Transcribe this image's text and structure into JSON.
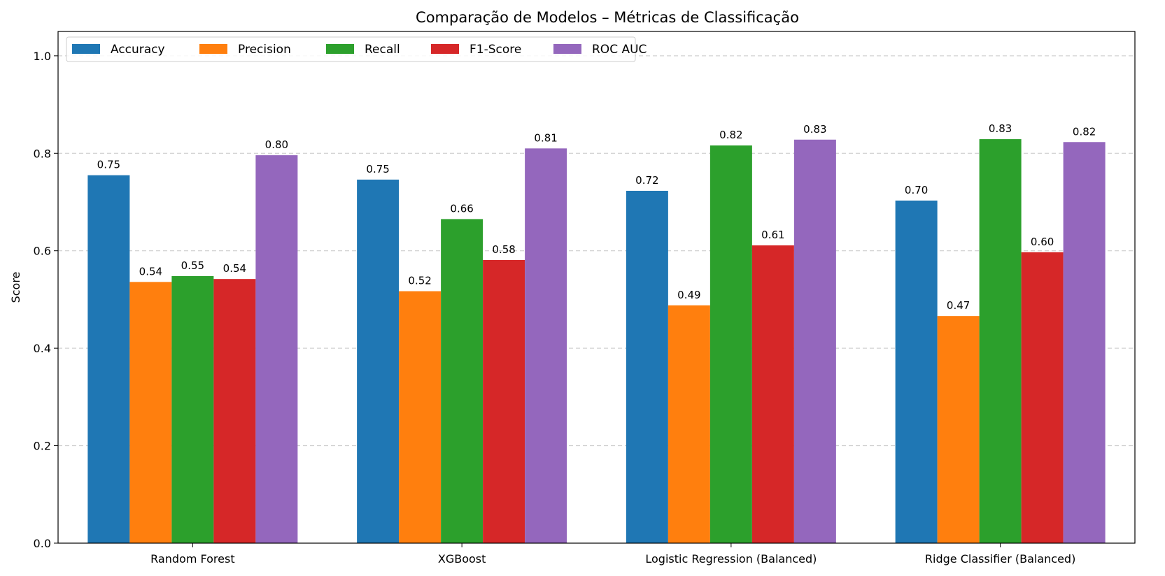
{
  "chart_data": {
    "type": "bar",
    "title": "Comparação de Modelos – Métricas de Classificação",
    "xlabel": "",
    "ylabel": "Score",
    "ylim": [
      0,
      1.05
    ],
    "yticks": [
      0.0,
      0.2,
      0.4,
      0.6,
      0.8,
      1.0
    ],
    "ytick_labels": [
      "0.0",
      "0.2",
      "0.4",
      "0.6",
      "0.8",
      "1.0"
    ],
    "grid": "y-dashed",
    "legend_position": "top-left",
    "categories": [
      "Random Forest",
      "XGBoost",
      "Logistic Regression (Balanced)",
      "Ridge Classifier (Balanced)"
    ],
    "series": [
      {
        "name": "Accuracy",
        "color": "#1f77b4",
        "values": [
          0.755,
          0.746,
          0.723,
          0.703
        ],
        "labels": [
          "0.75",
          "0.75",
          "0.72",
          "0.70"
        ]
      },
      {
        "name": "Precision",
        "color": "#ff7f0e",
        "values": [
          0.536,
          0.517,
          0.488,
          0.466
        ],
        "labels": [
          "0.54",
          "0.52",
          "0.49",
          "0.47"
        ]
      },
      {
        "name": "Recall",
        "color": "#2ca02c",
        "values": [
          0.548,
          0.665,
          0.816,
          0.829
        ],
        "labels": [
          "0.55",
          "0.66",
          "0.82",
          "0.83"
        ]
      },
      {
        "name": "F1-Score",
        "color": "#d62728",
        "values": [
          0.542,
          0.581,
          0.611,
          0.597
        ],
        "labels": [
          "0.54",
          "0.58",
          "0.61",
          "0.60"
        ]
      },
      {
        "name": "ROC AUC",
        "color": "#9467bd",
        "values": [
          0.796,
          0.81,
          0.828,
          0.823
        ],
        "labels": [
          "0.80",
          "0.81",
          "0.83",
          "0.82"
        ]
      }
    ]
  }
}
